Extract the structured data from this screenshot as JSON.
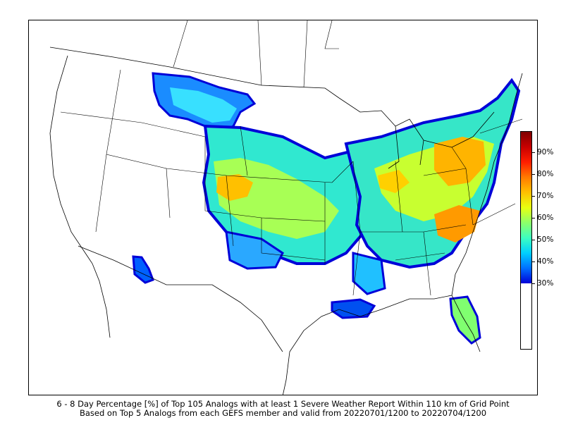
{
  "caption": {
    "line1": "6 - 8 Day Percentage [%] of Top 105 Analogs with at least 1 Severe Weather Report Within 110 km of Grid Point",
    "line2": "Based on Top 5 Analogs from each GEFS member and valid from 20220701/1200 to 20220704/1200"
  },
  "colorbar": {
    "ticks": [
      "30%",
      "40%",
      "50%",
      "60%",
      "70%",
      "80%",
      "90%"
    ],
    "colors": [
      "#0000d8",
      "#0070ff",
      "#00d0ff",
      "#3dffc0",
      "#8dff6a",
      "#e8ff10",
      "#ffc000",
      "#ff7a00",
      "#ff1e00",
      "#c80000",
      "#7f0000"
    ]
  }
}
